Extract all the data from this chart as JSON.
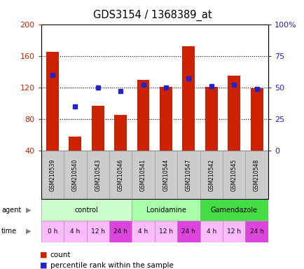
{
  "title": "GDS3154 / 1368389_at",
  "samples": [
    "GSM210539",
    "GSM210540",
    "GSM210543",
    "GSM210546",
    "GSM210541",
    "GSM210544",
    "GSM210547",
    "GSM210542",
    "GSM210545",
    "GSM210548"
  ],
  "counts": [
    165,
    58,
    97,
    85,
    130,
    121,
    172,
    121,
    135,
    119
  ],
  "percentiles": [
    60,
    35,
    50,
    47,
    52,
    50,
    57,
    51,
    52,
    49
  ],
  "ylim_left": [
    40,
    200
  ],
  "ylim_right": [
    0,
    100
  ],
  "yticks_left": [
    40,
    80,
    120,
    160,
    200
  ],
  "yticks_right": [
    0,
    25,
    50,
    75,
    100
  ],
  "ytick_labels_left": [
    "40",
    "80",
    "120",
    "160",
    "200"
  ],
  "ytick_labels_right": [
    "0",
    "25",
    "50",
    "75",
    "100%"
  ],
  "agent_groups": [
    {
      "label": "control",
      "start": 0,
      "end": 4,
      "color": "#ccffcc"
    },
    {
      "label": "Lonidamine",
      "start": 4,
      "end": 7,
      "color": "#aaffaa"
    },
    {
      "label": "Gamendazole",
      "start": 7,
      "end": 10,
      "color": "#44dd44"
    }
  ],
  "time_labels": [
    "0 h",
    "4 h",
    "12 h",
    "24 h",
    "4 h",
    "12 h",
    "24 h",
    "4 h",
    "12 h",
    "24 h"
  ],
  "time_colors": [
    "#ffbbff",
    "#ffbbff",
    "#ffbbff",
    "#dd44dd",
    "#ffbbff",
    "#ffbbff",
    "#dd44dd",
    "#ffbbff",
    "#ffbbff",
    "#dd44dd"
  ],
  "gsm_bg": "#cccccc",
  "bar_color": "#cc2200",
  "dot_color": "#2222cc",
  "bar_width": 0.55,
  "background_color": "#ffffff",
  "left_axis_color": "#cc2200",
  "right_axis_color": "#2222cc",
  "grid_lines": [
    80,
    120,
    160
  ],
  "fig_width": 4.35,
  "fig_height": 3.84,
  "dpi": 100
}
